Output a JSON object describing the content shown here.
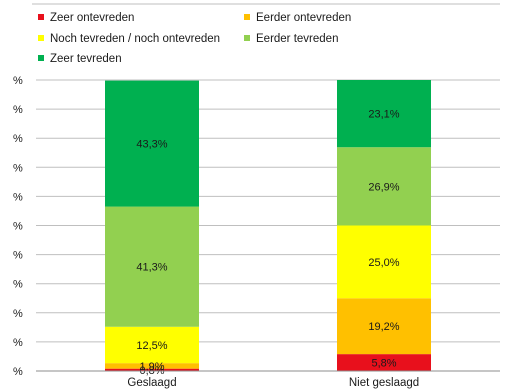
{
  "chart_data": {
    "type": "bar",
    "stacked": true,
    "percent": true,
    "categories": [
      "Geslaagd",
      "Niet geslaagd"
    ],
    "series": [
      {
        "name": "Zeer ontevreden",
        "color": "#e8101c",
        "values": [
          0.8,
          5.8
        ],
        "labels": [
          "0,8%",
          "5,8%"
        ]
      },
      {
        "name": "Eerder ontevreden",
        "color": "#ffc000",
        "values": [
          1.9,
          19.2
        ],
        "labels": [
          "1,9%",
          "19,2%"
        ]
      },
      {
        "name": "Noch tevreden / noch ontevreden",
        "color": "#ffff00",
        "values": [
          12.5,
          25.0
        ],
        "labels": [
          "12,5%",
          "25,0%"
        ]
      },
      {
        "name": "Eerder tevreden",
        "color": "#92d050",
        "values": [
          41.3,
          26.9
        ],
        "labels": [
          "41,3%",
          "26,9%"
        ]
      },
      {
        "name": "Zeer tevreden",
        "color": "#00b050",
        "values": [
          43.3,
          23.1
        ],
        "labels": [
          "43,3%",
          "23,1%"
        ]
      }
    ],
    "y_tick_label": "%",
    "y_tick_count": 11,
    "ylim": [
      0,
      100
    ],
    "grid": true,
    "legend_position": "top"
  }
}
